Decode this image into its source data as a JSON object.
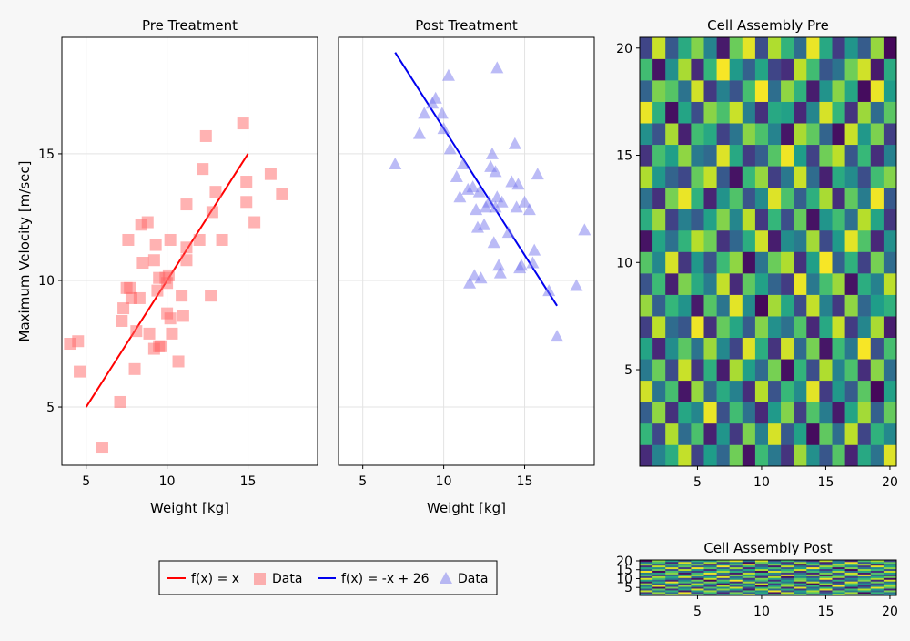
{
  "chart_data": [
    {
      "type": "scatter",
      "title": "Pre Treatment",
      "xlabel": "Weight [kg]",
      "ylabel": "Maximum Velocity [m/sec]",
      "xlim": [
        3.5,
        19.3
      ],
      "ylim": [
        2.7,
        19.6
      ],
      "xticks": [
        "5",
        "10",
        "15"
      ],
      "yticks": [
        "5",
        "10",
        "15"
      ],
      "grid": true,
      "series": [
        {
          "name": "f(x) = x",
          "kind": "line",
          "color": "#ff0000",
          "x": [
            5,
            15
          ],
          "y": [
            5,
            15
          ]
        },
        {
          "name": "Data",
          "kind": "markers",
          "marker": "square",
          "color": "#ff6666",
          "x": [
            4.0,
            4.5,
            4.6,
            6.0,
            7.1,
            7.2,
            7.3,
            7.5,
            7.6,
            7.7,
            7.8,
            8.0,
            8.1,
            8.3,
            8.4,
            8.5,
            8.8,
            8.9,
            9.2,
            9.2,
            9.3,
            9.4,
            9.5,
            9.5,
            9.6,
            9.9,
            10.0,
            10.0,
            10.1,
            10.2,
            10.2,
            10.3,
            10.7,
            10.9,
            11.0,
            11.2,
            11.2,
            11.2,
            12.0,
            12.2,
            12.4,
            12.7,
            12.8,
            13.0,
            13.4,
            14.7,
            14.9,
            14.9,
            15.4,
            16.4,
            17.1
          ],
          "y": [
            7.5,
            7.6,
            6.4,
            3.4,
            5.2,
            8.4,
            8.9,
            9.7,
            11.6,
            9.7,
            9.3,
            6.5,
            8.0,
            9.3,
            12.2,
            10.7,
            12.3,
            7.9,
            7.3,
            10.8,
            11.4,
            9.6,
            10.1,
            7.4,
            7.4,
            10.1,
            8.7,
            9.9,
            10.2,
            8.5,
            11.6,
            7.9,
            6.8,
            9.4,
            8.6,
            11.3,
            10.8,
            13.0,
            11.6,
            14.4,
            15.7,
            9.4,
            12.7,
            13.5,
            11.6,
            16.2,
            13.9,
            13.1,
            12.3,
            14.2,
            13.4
          ]
        }
      ]
    },
    {
      "type": "scatter",
      "title": "Post Treatment",
      "xlabel": "Weight [kg]",
      "xlim": [
        3.5,
        19.3
      ],
      "ylim": [
        2.7,
        19.6
      ],
      "xticks": [
        "5",
        "10",
        "15"
      ],
      "grid": true,
      "series": [
        {
          "name": "f(x) = -x + 26",
          "kind": "line",
          "color": "#0000ee",
          "x": [
            7,
            17
          ],
          "y": [
            19,
            9
          ]
        },
        {
          "name": "Data",
          "kind": "markers",
          "marker": "triangle",
          "color": "#7777ee",
          "x": [
            7.0,
            8.5,
            8.8,
            9.3,
            9.5,
            9.9,
            10.0,
            10.3,
            10.4,
            10.8,
            11.0,
            11.2,
            11.5,
            11.6,
            11.8,
            11.9,
            12.0,
            12.1,
            12.2,
            12.3,
            12.5,
            12.6,
            12.8,
            12.9,
            13.0,
            13.1,
            13.2,
            13.2,
            13.3,
            13.3,
            13.4,
            13.5,
            13.6,
            14.0,
            14.2,
            14.4,
            14.5,
            14.6,
            14.7,
            14.8,
            15.0,
            15.3,
            15.5,
            15.6,
            15.8,
            16.5,
            17.0,
            18.2,
            18.7
          ],
          "y": [
            14.6,
            15.8,
            16.6,
            17.0,
            17.2,
            16.6,
            16.0,
            18.1,
            15.2,
            14.1,
            13.3,
            14.6,
            13.6,
            9.9,
            13.7,
            10.2,
            12.8,
            12.1,
            13.5,
            10.1,
            12.2,
            12.9,
            13.1,
            14.5,
            15.0,
            11.5,
            14.3,
            12.9,
            18.4,
            13.3,
            10.6,
            10.3,
            13.1,
            11.9,
            13.9,
            15.4,
            12.9,
            13.8,
            10.5,
            10.6,
            13.1,
            12.8,
            10.7,
            11.2,
            14.2,
            9.6,
            7.8,
            9.8,
            12.0
          ]
        }
      ]
    },
    {
      "type": "heatmap",
      "title": "Cell Assembly Pre",
      "xlim": [
        0.5,
        20.5
      ],
      "ylim": [
        0.5,
        20.5
      ],
      "xticks": [
        "5",
        "10",
        "15",
        "20"
      ],
      "yticks": [
        "5",
        "10",
        "15",
        "20"
      ],
      "colormap": "viridis",
      "values": [
        [
          0.12,
          0.45,
          0.62,
          0.91,
          0.2,
          0.55,
          0.33,
          0.78,
          0.05,
          0.68,
          0.4,
          0.15,
          0.85,
          0.5,
          0.27,
          0.73,
          0.1,
          0.6,
          0.38,
          0.95
        ],
        [
          0.66,
          0.22,
          0.88,
          0.35,
          0.71,
          0.09,
          0.52,
          0.17,
          0.8,
          0.43,
          0.94,
          0.28,
          0.57,
          0.03,
          0.75,
          0.36,
          0.9,
          0.21,
          0.64,
          0.47
        ],
        [
          0.3,
          0.83,
          0.14,
          0.59,
          0.46,
          0.97,
          0.25,
          0.69,
          0.37,
          0.11,
          0.54,
          0.81,
          0.19,
          0.72,
          0.42,
          0.07,
          0.58,
          0.86,
          0.31,
          0.76
        ],
        [
          0.93,
          0.39,
          0.7,
          0.06,
          0.84,
          0.32,
          0.61,
          0.44,
          0.13,
          0.89,
          0.26,
          0.67,
          0.48,
          0.96,
          0.18,
          0.53,
          0.29,
          0.74,
          0.02,
          0.57
        ],
        [
          0.41,
          0.77,
          0.23,
          0.92,
          0.16,
          0.63,
          0.08,
          0.87,
          0.56,
          0.34,
          0.79,
          0.04,
          0.65,
          0.24,
          0.88,
          0.45,
          0.71,
          0.13,
          0.82,
          0.36
        ],
        [
          0.58,
          0.11,
          0.49,
          0.74,
          0.38,
          0.85,
          0.47,
          0.21,
          0.95,
          0.62,
          0.15,
          0.93,
          0.34,
          0.79,
          0.06,
          0.68,
          0.4,
          0.99,
          0.25,
          0.7
        ],
        [
          0.19,
          0.9,
          0.35,
          0.27,
          0.98,
          0.14,
          0.76,
          0.59,
          0.29,
          0.81,
          0.5,
          0.37,
          0.72,
          0.11,
          0.6,
          0.92,
          0.18,
          0.46,
          0.87,
          0.08
        ],
        [
          0.84,
          0.31,
          0.66,
          0.51,
          0.07,
          0.73,
          0.39,
          0.96,
          0.48,
          0.02,
          0.86,
          0.59,
          0.23,
          0.91,
          0.44,
          0.17,
          0.83,
          0.33,
          0.55,
          0.64
        ],
        [
          0.26,
          0.68,
          0.09,
          0.8,
          0.61,
          0.42,
          0.91,
          0.12,
          0.75,
          0.57,
          0.32,
          0.18,
          0.97,
          0.4,
          0.7,
          0.85,
          0.05,
          0.62,
          0.44,
          0.9
        ],
        [
          0.73,
          0.47,
          0.94,
          0.16,
          0.53,
          0.26,
          0.68,
          0.83,
          0.04,
          0.39,
          0.77,
          0.88,
          0.14,
          0.56,
          0.99,
          0.31,
          0.64,
          0.2,
          0.79,
          0.35
        ],
        [
          0.05,
          0.58,
          0.37,
          0.65,
          0.89,
          0.78,
          0.15,
          0.33,
          0.62,
          0.93,
          0.08,
          0.49,
          0.41,
          0.86,
          0.23,
          0.54,
          0.96,
          0.72,
          0.11,
          0.5
        ],
        [
          0.62,
          0.85,
          0.2,
          0.43,
          0.29,
          0.57,
          0.81,
          0.46,
          0.9,
          0.17,
          0.66,
          0.24,
          0.76,
          0.05,
          0.52,
          0.69,
          0.37,
          0.89,
          0.58,
          0.16
        ],
        [
          0.37,
          0.14,
          0.79,
          0.97,
          0.64,
          0.1,
          0.51,
          0.72,
          0.26,
          0.48,
          0.95,
          0.71,
          0.3,
          0.63,
          0.87,
          0.13,
          0.75,
          0.42,
          0.98,
          0.28
        ],
        [
          0.88,
          0.53,
          0.32,
          0.22,
          0.76,
          0.91,
          0.28,
          0.05,
          0.67,
          0.84,
          0.19,
          0.4,
          0.92,
          0.35,
          0.09,
          0.61,
          0.48,
          0.24,
          0.69,
          0.81
        ],
        [
          0.15,
          0.7,
          0.56,
          0.83,
          0.41,
          0.34,
          0.95,
          0.6,
          0.18,
          0.3,
          0.73,
          0.98,
          0.55,
          0.2,
          0.78,
          0.9,
          0.27,
          0.67,
          0.13,
          0.44
        ],
        [
          0.5,
          0.26,
          0.87,
          0.09,
          0.69,
          0.6,
          0.2,
          0.39,
          0.82,
          0.71,
          0.45,
          0.06,
          0.87,
          0.75,
          0.32,
          0.04,
          0.92,
          0.53,
          0.8,
          0.19
        ],
        [
          0.97,
          0.63,
          0.04,
          0.58,
          0.24,
          0.82,
          0.71,
          0.92,
          0.43,
          0.14,
          0.6,
          0.57,
          0.11,
          0.46,
          0.94,
          0.66,
          0.15,
          0.85,
          0.35,
          0.74
        ],
        [
          0.32,
          0.8,
          0.73,
          0.38,
          0.93,
          0.17,
          0.44,
          0.26,
          0.7,
          0.99,
          0.36,
          0.83,
          0.64,
          0.08,
          0.51,
          0.82,
          0.59,
          0.03,
          0.97,
          0.55
        ],
        [
          0.69,
          0.05,
          0.5,
          0.87,
          0.12,
          0.66,
          0.99,
          0.54,
          0.31,
          0.58,
          0.21,
          0.13,
          0.9,
          0.69,
          0.27,
          0.38,
          0.78,
          0.93,
          0.07,
          0.61
        ],
        [
          0.21,
          0.92,
          0.28,
          0.61,
          0.81,
          0.45,
          0.07,
          0.77,
          0.96,
          0.24,
          0.88,
          0.65,
          0.35,
          0.97,
          0.6,
          0.18,
          0.52,
          0.29,
          0.84,
          0.02
        ]
      ]
    },
    {
      "type": "heatmap",
      "title": "Cell Assembly Post",
      "xlim": [
        0.5,
        20.5
      ],
      "ylim": [
        0.5,
        20.5
      ],
      "xticks": [
        "5",
        "10",
        "15",
        "20"
      ],
      "yticks": [
        "5",
        "10",
        "15",
        "20"
      ],
      "colormap": "viridis",
      "values": [
        [
          0.55,
          0.12,
          0.88,
          0.31,
          0.76,
          0.04,
          0.63,
          0.42,
          0.95,
          0.2,
          0.69,
          0.37,
          0.81,
          0.15,
          0.58,
          0.92,
          0.26,
          0.73,
          0.09,
          0.47
        ],
        [
          0.18,
          0.83,
          0.36,
          0.97,
          0.24,
          0.67,
          0.11,
          0.79,
          0.33,
          0.61,
          0.06,
          0.9,
          0.44,
          0.72,
          0.29,
          0.53,
          0.86,
          0.02,
          0.65,
          0.38
        ],
        [
          0.91,
          0.4,
          0.64,
          0.07,
          0.52,
          0.85,
          0.35,
          0.19,
          0.7,
          0.46,
          0.98,
          0.23,
          0.57,
          0.88,
          0.13,
          0.76,
          0.41,
          0.6,
          0.32,
          0.8
        ],
        [
          0.27,
          0.74,
          0.16,
          0.59,
          0.93,
          0.3,
          0.82,
          0.56,
          0.08,
          0.87,
          0.34,
          0.62,
          0.17,
          0.49,
          0.95,
          0.21,
          0.68,
          0.89,
          0.54,
          0.1
        ],
        [
          0.66,
          0.05,
          0.79,
          0.43,
          0.14,
          0.71,
          0.48,
          0.93,
          0.25,
          0.58,
          0.77,
          0.11,
          0.94,
          0.32,
          0.62,
          0.4,
          0.08,
          0.35,
          0.96,
          0.73
        ],
        [
          0.39,
          0.96,
          0.22,
          0.84,
          0.61,
          0.18,
          0.9,
          0.27,
          0.64,
          0.03,
          0.51,
          0.85,
          0.28,
          0.66,
          0.07,
          0.99,
          0.57,
          0.14,
          0.45,
          0.87
        ],
        [
          0.82,
          0.29,
          0.53,
          0.15,
          0.88,
          0.45,
          0.06,
          0.68,
          0.37,
          0.92,
          0.19,
          0.74,
          0.6,
          0.03,
          0.84,
          0.33,
          0.71,
          0.5,
          0.23,
          0.61
        ],
        [
          0.08,
          0.63,
          0.97,
          0.7,
          0.33,
          0.79,
          0.58,
          0.12,
          0.86,
          0.24,
          0.67,
          0.41,
          0.09,
          0.91,
          0.47,
          0.15,
          0.94,
          0.28,
          0.78,
          0.36
        ],
        [
          0.57,
          0.34,
          0.1,
          0.48,
          0.77,
          0.02,
          0.72,
          0.99,
          0.44,
          0.69,
          0.13,
          0.56,
          0.83,
          0.38,
          0.2,
          0.65,
          0.31,
          0.81,
          0.12,
          0.93
        ],
        [
          0.94,
          0.7,
          0.45,
          0.26,
          0.06,
          0.91,
          0.23,
          0.5,
          0.17,
          0.8,
          0.6,
          0.32,
          0.75,
          0.54,
          0.97,
          0.1,
          0.46,
          0.66,
          0.88,
          0.04
        ],
        [
          0.21,
          0.86,
          0.6,
          0.93,
          0.4,
          0.55,
          0.96,
          0.36,
          0.77,
          0.13,
          0.89,
          0.05,
          0.48,
          0.26,
          0.71,
          0.83,
          0.19,
          0.42,
          0.59,
          0.78
        ],
        [
          0.73,
          0.16,
          0.3,
          0.62,
          0.85,
          0.27,
          0.14,
          0.81,
          0.52,
          0.39,
          0.22,
          0.97,
          0.67,
          0.85,
          0.04,
          0.58,
          0.74,
          0.99,
          0.31,
          0.17
        ],
        [
          0.44,
          0.58,
          0.82,
          0.05,
          0.68,
          0.97,
          0.41,
          0.07,
          0.9,
          0.65,
          0.48,
          0.18,
          0.36,
          0.1,
          0.79,
          0.25,
          0.93,
          0.07,
          0.72,
          0.54
        ],
        [
          0.98,
          0.03,
          0.71,
          0.37,
          0.19,
          0.6,
          0.87,
          0.62,
          0.28,
          0.04,
          0.94,
          0.77,
          0.13,
          0.69,
          0.43,
          0.87,
          0.35,
          0.61,
          0.15,
          0.9
        ],
        [
          0.33,
          0.77,
          0.25,
          0.89,
          0.51,
          0.13,
          0.65,
          0.3,
          0.59,
          0.86,
          0.37,
          0.63,
          0.92,
          0.47,
          0.18,
          0.56,
          0.02,
          0.84,
          0.68,
          0.26
        ],
        [
          0.6,
          0.49,
          0.94,
          0.18,
          0.97,
          0.72,
          0.31,
          0.85,
          0.11,
          0.52,
          0.7,
          0.28,
          0.56,
          0.99,
          0.64,
          0.06,
          0.8,
          0.39,
          0.47,
          0.83
        ],
        [
          0.14,
          0.91,
          0.38,
          0.75,
          0.28,
          0.42,
          0.99,
          0.22,
          0.67,
          0.31,
          0.08,
          0.91,
          0.4,
          0.21,
          0.86,
          0.73,
          0.44,
          0.18,
          0.97,
          0.58
        ],
        [
          0.86,
          0.24,
          0.67,
          0.52,
          0.8,
          0.09,
          0.54,
          0.74,
          0.97,
          0.17,
          0.82,
          0.45,
          0.03,
          0.78,
          0.35,
          0.92,
          0.62,
          0.88,
          0.05,
          0.39
        ],
        [
          0.47,
          0.68,
          0.11,
          0.94,
          0.35,
          0.87,
          0.19,
          0.46,
          0.04,
          0.75,
          0.53,
          0.16,
          0.85,
          0.57,
          0.09,
          0.48,
          0.97,
          0.27,
          0.63,
          0.76
        ],
        [
          0.03,
          0.81,
          0.57,
          0.29,
          0.64,
          0.5,
          0.78,
          0.95,
          0.4,
          0.93,
          0.26,
          0.69,
          0.32,
          0.14,
          0.9,
          0.37,
          0.11,
          0.7,
          0.86,
          0.21
        ]
      ]
    }
  ],
  "legend": {
    "placement": "bottom",
    "entries": [
      {
        "label": "f(x) = x",
        "kind": "line",
        "color": "#ff0000"
      },
      {
        "label": "Data",
        "kind": "square",
        "color": "#ff6666"
      },
      {
        "label": "f(x) = -x + 26",
        "kind": "line",
        "color": "#0000ee"
      },
      {
        "label": "Data",
        "kind": "triangle",
        "color": "#7777ee"
      }
    ]
  }
}
